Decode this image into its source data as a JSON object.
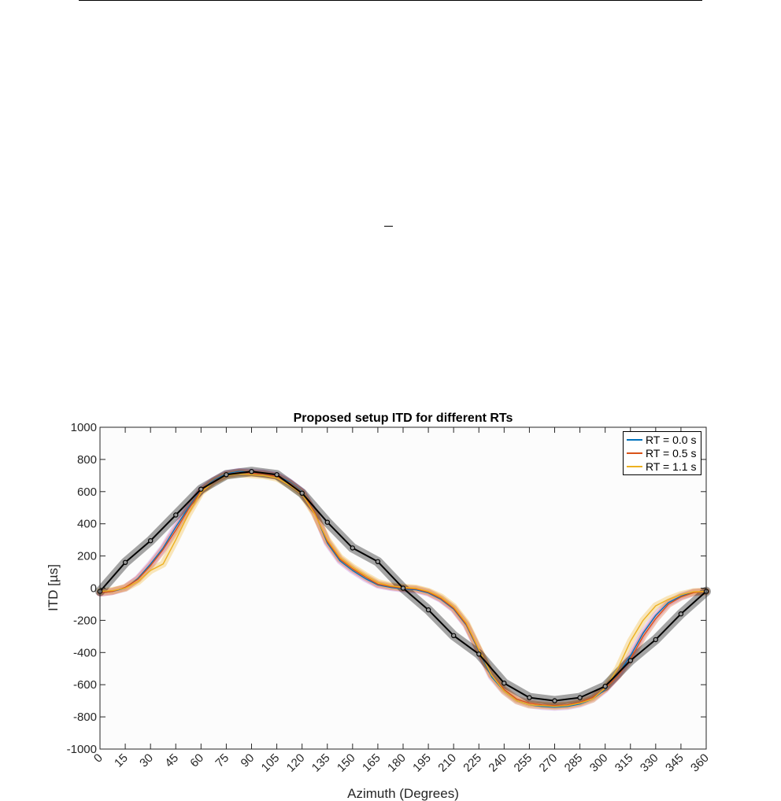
{
  "chart_data": {
    "type": "line",
    "title": "Proposed setup ITD for different RTs",
    "xlabel": "Azimuth (Degrees)",
    "ylabel": "ITD [µs]",
    "xlim": [
      0,
      360
    ],
    "ylim": [
      -1000,
      1000
    ],
    "xticks": [
      0,
      15,
      30,
      45,
      60,
      75,
      90,
      105,
      120,
      135,
      150,
      165,
      180,
      195,
      210,
      225,
      240,
      255,
      270,
      285,
      300,
      315,
      330,
      345,
      360
    ],
    "yticks": [
      -1000,
      -800,
      -600,
      -400,
      -200,
      0,
      200,
      400,
      600,
      800,
      1000
    ],
    "grid": false,
    "legend_position": "top-right",
    "series": [
      {
        "name": "RT = 0.0 s",
        "color": "#0072BD",
        "x": [
          0,
          7.5,
          15,
          22.5,
          30,
          37.5,
          45,
          52.5,
          60,
          67.5,
          75,
          82.5,
          90,
          97.5,
          105,
          112.5,
          120,
          127.5,
          135,
          142.5,
          150,
          157.5,
          165,
          172.5,
          180,
          187.5,
          195,
          202.5,
          210,
          217.5,
          225,
          232.5,
          240,
          247.5,
          255,
          262.5,
          270,
          277.5,
          285,
          292.5,
          300,
          307.5,
          315,
          322.5,
          330,
          337.5,
          345,
          352.5,
          360
        ],
        "values": [
          -30,
          -20,
          0,
          60,
          150,
          250,
          380,
          500,
          610,
          670,
          710,
          725,
          720,
          715,
          700,
          660,
          600,
          470,
          280,
          170,
          110,
          60,
          20,
          5,
          -5,
          -10,
          -30,
          -70,
          -130,
          -230,
          -390,
          -550,
          -640,
          -700,
          -725,
          -735,
          -740,
          -735,
          -720,
          -690,
          -630,
          -540,
          -420,
          -280,
          -170,
          -90,
          -50,
          -25,
          -20
        ]
      },
      {
        "name": "RT = 0.5 s",
        "color": "#D95319",
        "x": [
          0,
          7.5,
          15,
          22.5,
          30,
          37.5,
          45,
          52.5,
          60,
          67.5,
          75,
          82.5,
          90,
          97.5,
          105,
          112.5,
          120,
          127.5,
          135,
          142.5,
          150,
          157.5,
          165,
          172.5,
          180,
          187.5,
          195,
          202.5,
          210,
          217.5,
          225,
          232.5,
          240,
          247.5,
          255,
          262.5,
          270,
          277.5,
          285,
          292.5,
          300,
          307.5,
          315,
          322.5,
          330,
          337.5,
          345,
          352.5,
          360
        ],
        "values": [
          -30,
          -20,
          5,
          55,
          140,
          240,
          360,
          490,
          605,
          665,
          705,
          720,
          715,
          710,
          695,
          655,
          595,
          470,
          290,
          180,
          120,
          70,
          25,
          10,
          0,
          -5,
          -25,
          -65,
          -125,
          -225,
          -385,
          -540,
          -630,
          -690,
          -715,
          -725,
          -730,
          -725,
          -710,
          -680,
          -625,
          -545,
          -440,
          -300,
          -190,
          -100,
          -55,
          -28,
          -20
        ]
      },
      {
        "name": "RT = 1.1 s",
        "color": "#EDB120",
        "x": [
          0,
          7.5,
          15,
          22.5,
          30,
          37.5,
          45,
          52.5,
          60,
          67.5,
          75,
          82.5,
          90,
          97.5,
          105,
          112.5,
          120,
          127.5,
          135,
          142.5,
          150,
          157.5,
          165,
          172.5,
          180,
          187.5,
          195,
          202.5,
          210,
          217.5,
          225,
          232.5,
          240,
          247.5,
          255,
          262.5,
          270,
          277.5,
          285,
          292.5,
          300,
          307.5,
          315,
          322.5,
          330,
          337.5,
          345,
          352.5,
          360
        ],
        "values": [
          -20,
          -15,
          0,
          40,
          110,
          150,
          300,
          460,
          595,
          660,
          700,
          710,
          705,
          700,
          685,
          640,
          585,
          460,
          300,
          190,
          130,
          80,
          35,
          15,
          5,
          0,
          -20,
          -55,
          -115,
          -215,
          -380,
          -540,
          -640,
          -700,
          -725,
          -730,
          -735,
          -730,
          -715,
          -690,
          -620,
          -500,
          -330,
          -200,
          -110,
          -70,
          -40,
          -22,
          -20
        ]
      },
      {
        "name": "",
        "color": "#000000",
        "markers": true,
        "x": [
          0,
          15,
          30,
          45,
          60,
          75,
          90,
          105,
          120,
          135,
          150,
          165,
          180,
          195,
          210,
          225,
          240,
          255,
          270,
          285,
          300,
          315,
          330,
          345,
          360
        ],
        "values": [
          -20,
          160,
          295,
          455,
          615,
          705,
          725,
          705,
          590,
          410,
          250,
          165,
          0,
          -135,
          -295,
          -410,
          -590,
          -680,
          -700,
          -680,
          -610,
          -450,
          -320,
          -160,
          -20
        ]
      }
    ]
  }
}
